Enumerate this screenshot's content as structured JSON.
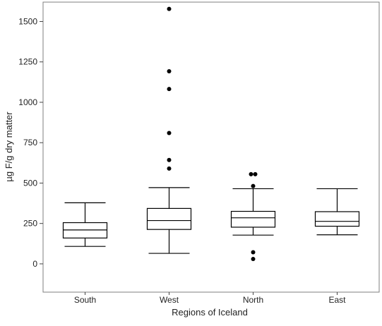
{
  "chart_data": {
    "type": "box",
    "title": "",
    "xlabel": "Regions of Iceland",
    "ylabel": "µg F/g dry matter",
    "ylim": [
      -175,
      1620
    ],
    "yticks": [
      0,
      250,
      500,
      750,
      1000,
      1250,
      1500
    ],
    "ytick_labels": [
      "0",
      "250",
      "500",
      "750",
      "1000",
      "1250",
      "1500"
    ],
    "grid": false,
    "categories": [
      "South",
      "West",
      "North",
      "East"
    ],
    "boxes": [
      {
        "category": "South",
        "whisker_low": 108,
        "q1": 160,
        "median": 210,
        "q3": 255,
        "whisker_high": 378,
        "outliers": []
      },
      {
        "category": "West",
        "whisker_low": 65,
        "q1": 213,
        "median": 268,
        "q3": 343,
        "whisker_high": 472,
        "outliers": [
          590,
          643,
          810,
          1082,
          1192,
          1578
        ]
      },
      {
        "category": "North",
        "whisker_low": 178,
        "q1": 227,
        "median": 285,
        "q3": 325,
        "whisker_high": 465,
        "outliers": [
          30,
          72,
          482,
          555,
          555
        ]
      },
      {
        "category": "East",
        "whisker_low": 180,
        "q1": 233,
        "median": 263,
        "q3": 323,
        "whisker_high": 465,
        "outliers": []
      }
    ],
    "colors": {
      "stroke": "#000000",
      "frame": "#7f7f7f",
      "background": "#ffffff"
    }
  }
}
